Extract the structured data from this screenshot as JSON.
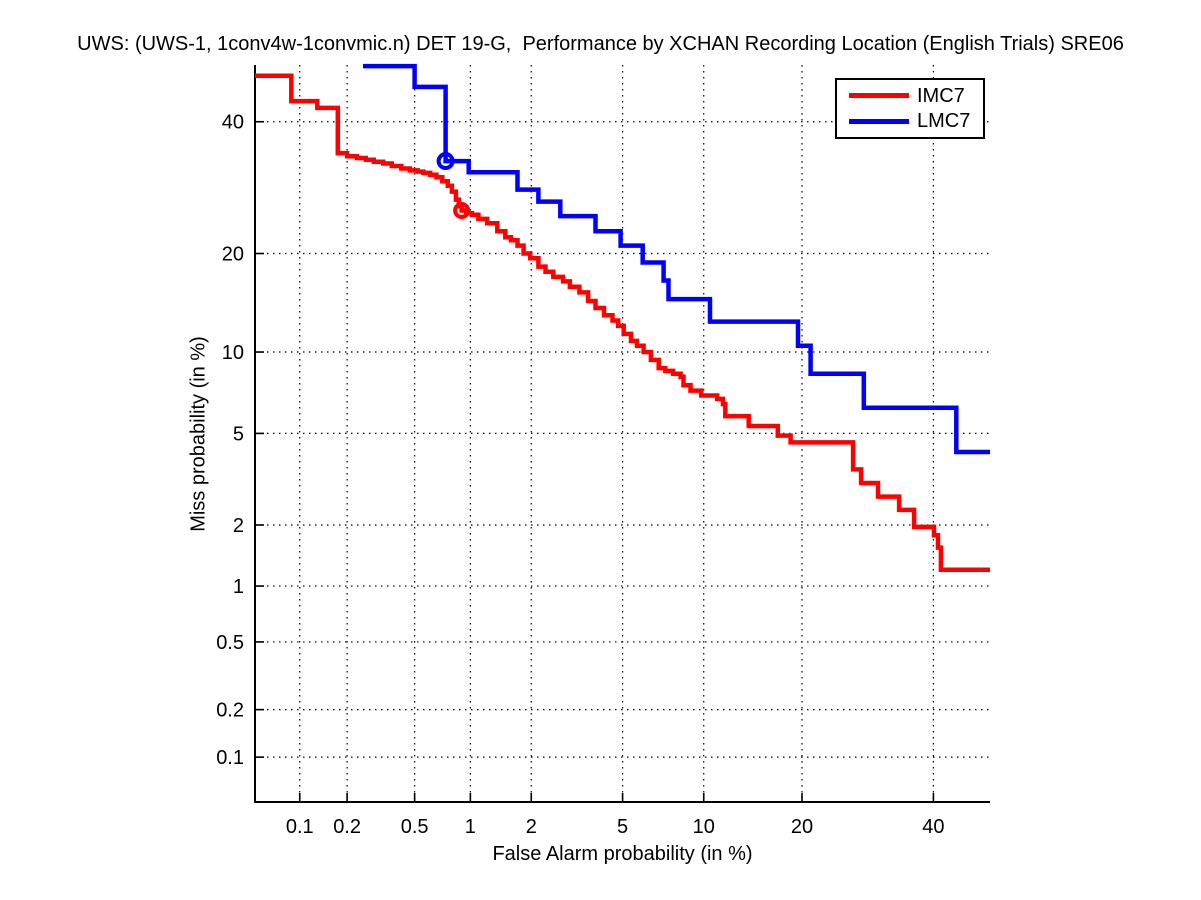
{
  "title": "UWS: (UWS-1, 1conv4w-1convmic.n) DET 19-G,  Performance by XCHAN Recording Location (English Trials) SRE06",
  "chart_data": {
    "type": "line",
    "subtype": "DET curve (step plot, probit/normal-deviate scale on both axes)",
    "title": "UWS: (UWS-1, 1conv4w-1convmic.n) DET 19-G,  Performance by XCHAN Recording Location (English Trials) SRE06",
    "xlabel": "False Alarm probability (in %)",
    "ylabel": "Miss probability (in %)",
    "xlim_pct": [
      0.05,
      50
    ],
    "ylim_pct": [
      0.05,
      50
    ],
    "x_ticks": [
      0.1,
      0.2,
      0.5,
      1,
      2,
      5,
      10,
      20,
      40
    ],
    "x_tick_labels": [
      "0.1",
      "0.2",
      "0.5",
      "1",
      "2",
      "5",
      "10",
      "20",
      "40"
    ],
    "y_ticks": [
      0.1,
      0.2,
      0.5,
      1,
      2,
      5,
      10,
      20,
      40
    ],
    "y_tick_labels": [
      "0.1",
      "0.2",
      "0.5",
      "1",
      "2",
      "5",
      "10",
      "20",
      "40"
    ],
    "grid": true,
    "grid_style": "dotted black",
    "legend_position": "top-right",
    "axis_color": "#000000",
    "background": "#ffffff",
    "series": [
      {
        "name": "IMC7",
        "color": "#ff0000",
        "line_width": 4.5,
        "marker_point": {
          "fa": 0.9,
          "miss": 25.8
        },
        "marker_radius": 6.5,
        "points": [
          [
            0.05,
            48.1
          ],
          [
            0.088,
            43.6
          ],
          [
            0.13,
            42.4
          ],
          [
            0.175,
            34.7
          ],
          [
            0.2,
            34.2
          ],
          [
            0.23,
            33.9
          ],
          [
            0.26,
            33.6
          ],
          [
            0.29,
            33.3
          ],
          [
            0.33,
            33.0
          ],
          [
            0.37,
            32.6
          ],
          [
            0.42,
            32.2
          ],
          [
            0.47,
            31.9
          ],
          [
            0.52,
            31.7
          ],
          [
            0.56,
            31.5
          ],
          [
            0.61,
            31.2
          ],
          [
            0.66,
            30.8
          ],
          [
            0.71,
            30.2
          ],
          [
            0.76,
            29.5
          ],
          [
            0.8,
            28.6
          ],
          [
            0.84,
            27.4
          ],
          [
            0.87,
            26.4
          ],
          [
            0.9,
            25.8
          ],
          [
            0.95,
            25.4
          ],
          [
            1.02,
            25.2
          ],
          [
            1.1,
            24.6
          ],
          [
            1.22,
            24.0
          ],
          [
            1.37,
            22.9
          ],
          [
            1.5,
            22.1
          ],
          [
            1.6,
            21.7
          ],
          [
            1.72,
            21.0
          ],
          [
            1.84,
            20.0
          ],
          [
            1.98,
            19.4
          ],
          [
            2.16,
            18.4
          ],
          [
            2.33,
            17.8
          ],
          [
            2.53,
            17.2
          ],
          [
            2.8,
            16.7
          ],
          [
            3.0,
            16.1
          ],
          [
            3.3,
            15.5
          ],
          [
            3.6,
            14.6
          ],
          [
            3.87,
            13.9
          ],
          [
            4.2,
            13.2
          ],
          [
            4.55,
            12.7
          ],
          [
            4.8,
            12.2
          ],
          [
            5.05,
            11.5
          ],
          [
            5.4,
            10.9
          ],
          [
            5.7,
            10.5
          ],
          [
            6.05,
            10.0
          ],
          [
            6.45,
            9.4
          ],
          [
            6.9,
            8.8
          ],
          [
            7.3,
            8.6
          ],
          [
            7.8,
            8.4
          ],
          [
            8.3,
            8.2
          ],
          [
            8.5,
            7.65
          ],
          [
            9.0,
            7.3
          ],
          [
            9.8,
            7.0
          ],
          [
            11.1,
            6.8
          ],
          [
            11.6,
            6.5
          ],
          [
            11.8,
            5.85
          ],
          [
            14.0,
            5.35
          ],
          [
            17.1,
            4.9
          ],
          [
            18.6,
            4.6
          ],
          [
            27.0,
            3.55
          ],
          [
            28.2,
            3.1
          ],
          [
            30.8,
            2.7
          ],
          [
            34.2,
            2.35
          ],
          [
            36.7,
            1.96
          ],
          [
            40.1,
            1.79
          ],
          [
            40.8,
            1.56
          ],
          [
            41.3,
            1.21
          ],
          [
            50,
            1.21
          ]
        ]
      },
      {
        "name": "LMC7",
        "color": "#0000ff",
        "line_width": 4.5,
        "marker_point": {
          "fa": 0.74,
          "miss": 33.4
        },
        "marker_radius": 7,
        "points": [
          [
            0.25,
            49.8
          ],
          [
            0.5,
            46.1
          ],
          [
            0.74,
            33.4
          ],
          [
            0.98,
            31.6
          ],
          [
            1.72,
            28.9
          ],
          [
            2.16,
            27.1
          ],
          [
            2.72,
            25.0
          ],
          [
            3.87,
            22.9
          ],
          [
            4.91,
            21.0
          ],
          [
            6.0,
            18.9
          ],
          [
            7.2,
            16.8
          ],
          [
            7.5,
            14.8
          ],
          [
            10.5,
            12.6
          ],
          [
            19.5,
            10.5
          ],
          [
            21.1,
            8.4
          ],
          [
            28.6,
            6.3
          ],
          [
            44.0,
            4.2
          ],
          [
            50,
            4.2
          ]
        ]
      }
    ]
  }
}
